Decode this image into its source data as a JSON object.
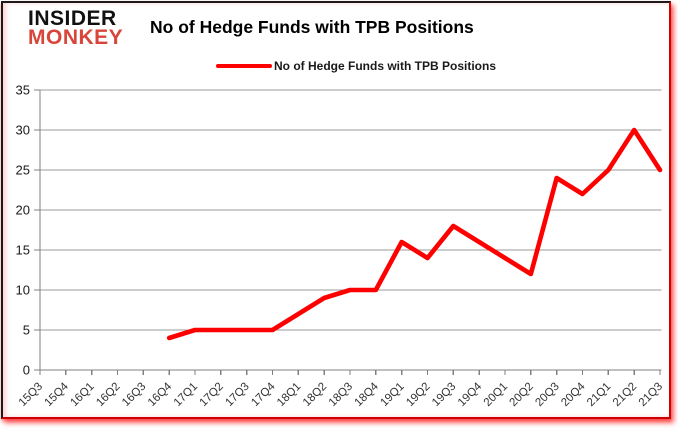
{
  "logo": {
    "line1": "INSIDER",
    "line2": "MONKEY"
  },
  "header": {
    "title": "No of Hedge Funds with TPB Positions"
  },
  "legend": {
    "label": "No of Hedge Funds with TPB Positions",
    "swatch_color": "#fe0000"
  },
  "chart_data": {
    "type": "line",
    "title": "No of Hedge Funds with TPB Positions",
    "categories": [
      "15Q3",
      "15Q4",
      "16Q1",
      "16Q2",
      "16Q3",
      "16Q4",
      "17Q1",
      "17Q2",
      "17Q3",
      "17Q4",
      "18Q1",
      "18Q2",
      "18Q3",
      "18Q4",
      "19Q1",
      "19Q2",
      "19Q3",
      "19Q4",
      "20Q1",
      "20Q2",
      "20Q3",
      "20Q4",
      "21Q1",
      "21Q2",
      "21Q3"
    ],
    "series": [
      {
        "name": "No of Hedge Funds with TPB Positions",
        "color": "#fe0000",
        "values": [
          null,
          null,
          null,
          null,
          null,
          4,
          5,
          5,
          5,
          5,
          7,
          9,
          10,
          10,
          16,
          14,
          18,
          16,
          14,
          12,
          24,
          22,
          25,
          30,
          25
        ]
      }
    ],
    "xlabel": "",
    "ylabel": "",
    "ylim": [
      0,
      35
    ],
    "ytick_step": 5,
    "grid": "horizontal",
    "legend_position": "top"
  },
  "colors": {
    "background": "#ffffff",
    "grid": "#9b9b9b",
    "axis": "#808080",
    "y_label": "#1a1a1a",
    "x_label": "#333333",
    "line": "#fe0000",
    "logo_red": "#d8453a",
    "frame_border": "#1b1b1b",
    "frame_glow": "#ff0000"
  }
}
